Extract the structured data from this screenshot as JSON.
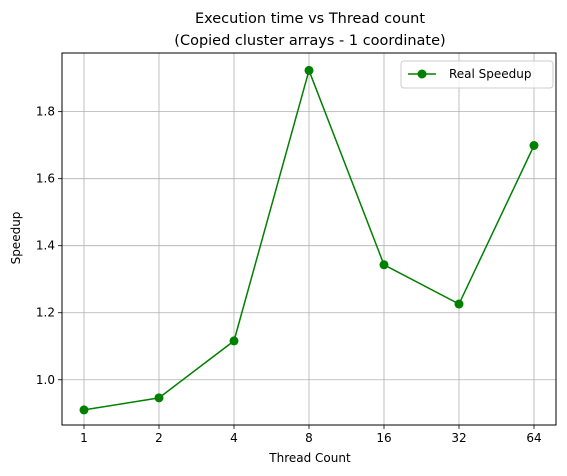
{
  "chart_data": {
    "type": "line",
    "title": "Execution time vs Thread count",
    "subtitle": "(Copied cluster arrays - 1 coordinate)",
    "xlabel": "Thread Count",
    "ylabel": "Speedup",
    "categories": [
      "1",
      "2",
      "4",
      "8",
      "16",
      "32",
      "64"
    ],
    "series": [
      {
        "name": "Real Speedup",
        "color": "#008000",
        "marker": "circle",
        "values": [
          0.91,
          0.946,
          1.116,
          1.923,
          1.343,
          1.226,
          1.699
        ]
      }
    ],
    "ylim": [
      0.865,
      1.975
    ],
    "yticks": [
      1.0,
      1.2,
      1.4,
      1.6,
      1.8
    ],
    "ytick_labels": [
      "1.0",
      "1.2",
      "1.4",
      "1.6",
      "1.8"
    ],
    "grid": true,
    "legend_position": "top-right"
  }
}
